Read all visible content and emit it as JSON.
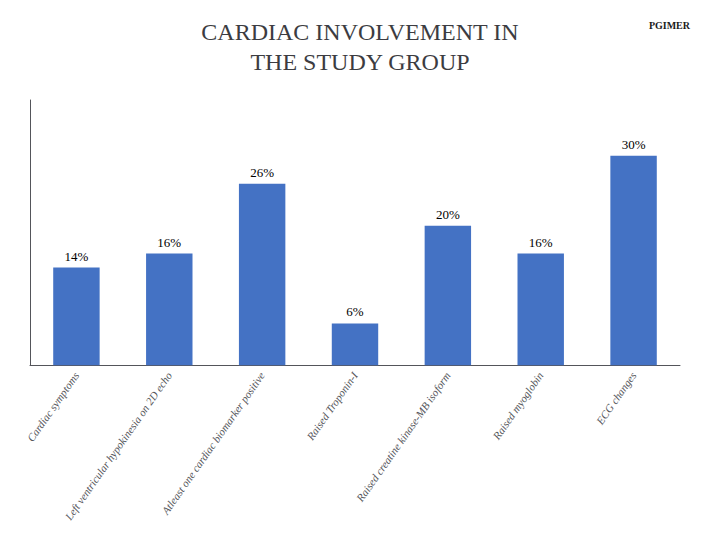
{
  "chart_data": {
    "type": "bar",
    "title": "CARDIAC INVOLVEMENT IN\nTHE STUDY GROUP",
    "categories": [
      "Cardiac symptoms",
      "Left ventricular hypokinesia on 2D echo",
      "Atleast one cardiac biomarker positive",
      "Raised Troponin-I",
      "Raised creatine kinase-MB isoform",
      "Raised myoglobin",
      "ECG changes"
    ],
    "values": [
      14,
      16,
      26,
      6,
      20,
      16,
      30
    ],
    "value_labels": [
      "14%",
      "16%",
      "26%",
      "6%",
      "20%",
      "16%",
      "30%"
    ],
    "data_labels": true,
    "color": "#4472C4",
    "ylim": [
      0,
      38
    ],
    "tick_labels": "x",
    "grid": false,
    "annotations": [
      "PGIMER"
    ]
  }
}
